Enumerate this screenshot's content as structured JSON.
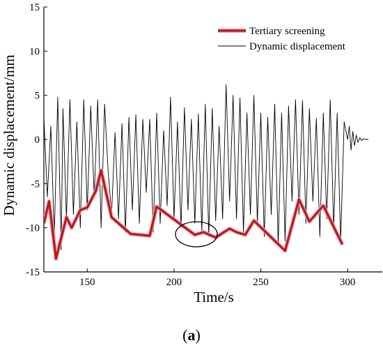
{
  "chart_data": {
    "type": "line",
    "xlabel": "Time/s",
    "ylabel": "Dynamic displacement/mm",
    "xlim": [
      125,
      320
    ],
    "ylim": [
      -15,
      15
    ],
    "xticks": [
      "150",
      "200",
      "250",
      "300"
    ],
    "yticks": [
      "-15",
      "-10",
      "-5",
      "0",
      "5",
      "10",
      "15"
    ],
    "legend_position": "top-right",
    "caption_open": "(",
    "caption_letter": "a",
    "caption_close": ")",
    "colors": {
      "tertiary": "#b81c12",
      "tertiary_glow": "#f0a0c8",
      "dynamic": "#000000"
    },
    "series": [
      {
        "name": "Tertiary screening",
        "style": "thick-red",
        "x": [
          125,
          128,
          132,
          138,
          141,
          146,
          150,
          155,
          158,
          164,
          175,
          186,
          190,
          203,
          212,
          217,
          224,
          232,
          236,
          241,
          246,
          264,
          272,
          278,
          286,
          297
        ],
        "y": [
          -9.5,
          -7.0,
          -13.5,
          -8.8,
          -10.0,
          -8.0,
          -7.7,
          -5.8,
          -3.5,
          -8.8,
          -10.7,
          -10.9,
          -7.6,
          -9.5,
          -10.8,
          -10.5,
          -11.1,
          -10.1,
          -10.5,
          -10.8,
          -9.2,
          -12.6,
          -6.8,
          -9.3,
          -7.5,
          -11.9
        ]
      },
      {
        "name": "Dynamic displacement",
        "style": "thin-black",
        "x": [
          125,
          127,
          129,
          131,
          133,
          135,
          136,
          138,
          140,
          142,
          144,
          146,
          148,
          150,
          152,
          154,
          156,
          158,
          160,
          162,
          164,
          166,
          168,
          170,
          172,
          174,
          176,
          178,
          180,
          182,
          184,
          186,
          188,
          190,
          192,
          194,
          196,
          198,
          200,
          202,
          204,
          206,
          208,
          210,
          212,
          214,
          216,
          218,
          220,
          222,
          224,
          226,
          228,
          230,
          232,
          234,
          236,
          238,
          240,
          242,
          244,
          246,
          248,
          250,
          252,
          254,
          256,
          258,
          260,
          262,
          264,
          266,
          268,
          270,
          272,
          274,
          276,
          278,
          280,
          282,
          284,
          286,
          288,
          290,
          292,
          294,
          296,
          298,
          300,
          301,
          302,
          303,
          304,
          305,
          306,
          307,
          308,
          309,
          310,
          311,
          312
        ],
        "y": [
          2.5,
          -6.5,
          1.5,
          -11.0,
          4.8,
          -12.5,
          3.5,
          -9.0,
          4.5,
          -8.5,
          2.0,
          -10.0,
          4.5,
          -8.0,
          3.8,
          -6.5,
          4.5,
          -10.0,
          4.0,
          -3.5,
          -8.5,
          0.8,
          -9.0,
          1.8,
          -10.5,
          2.5,
          -8.0,
          2.8,
          -9.5,
          2.3,
          -6.0,
          2.3,
          -10.5,
          3.0,
          -9.5,
          1.0,
          -7.5,
          4.8,
          -9.0,
          2.0,
          -10.0,
          3.6,
          -8.0,
          2.3,
          -9.5,
          2.9,
          -10.5,
          4.0,
          -11.0,
          3.5,
          -9.2,
          1.5,
          -9.0,
          6.2,
          -7.0,
          5.0,
          -9.0,
          4.7,
          -10.5,
          3.0,
          -8.5,
          5.0,
          -9.5,
          3.0,
          -11.0,
          2.5,
          -8.5,
          4.0,
          -12.0,
          3.0,
          -11.5,
          3.8,
          -7.0,
          4.5,
          -8.5,
          4.4,
          -9.5,
          3.5,
          -7.0,
          2.4,
          -11.0,
          3.0,
          -9.0,
          4.5,
          -10.0,
          3.0,
          -11.5,
          2.0,
          0.0,
          1.5,
          -1.2,
          0.9,
          -0.7,
          0.5,
          -0.35,
          0.2,
          -0.12,
          0.07,
          0.03,
          0.0,
          0.0
        ]
      }
    ]
  }
}
